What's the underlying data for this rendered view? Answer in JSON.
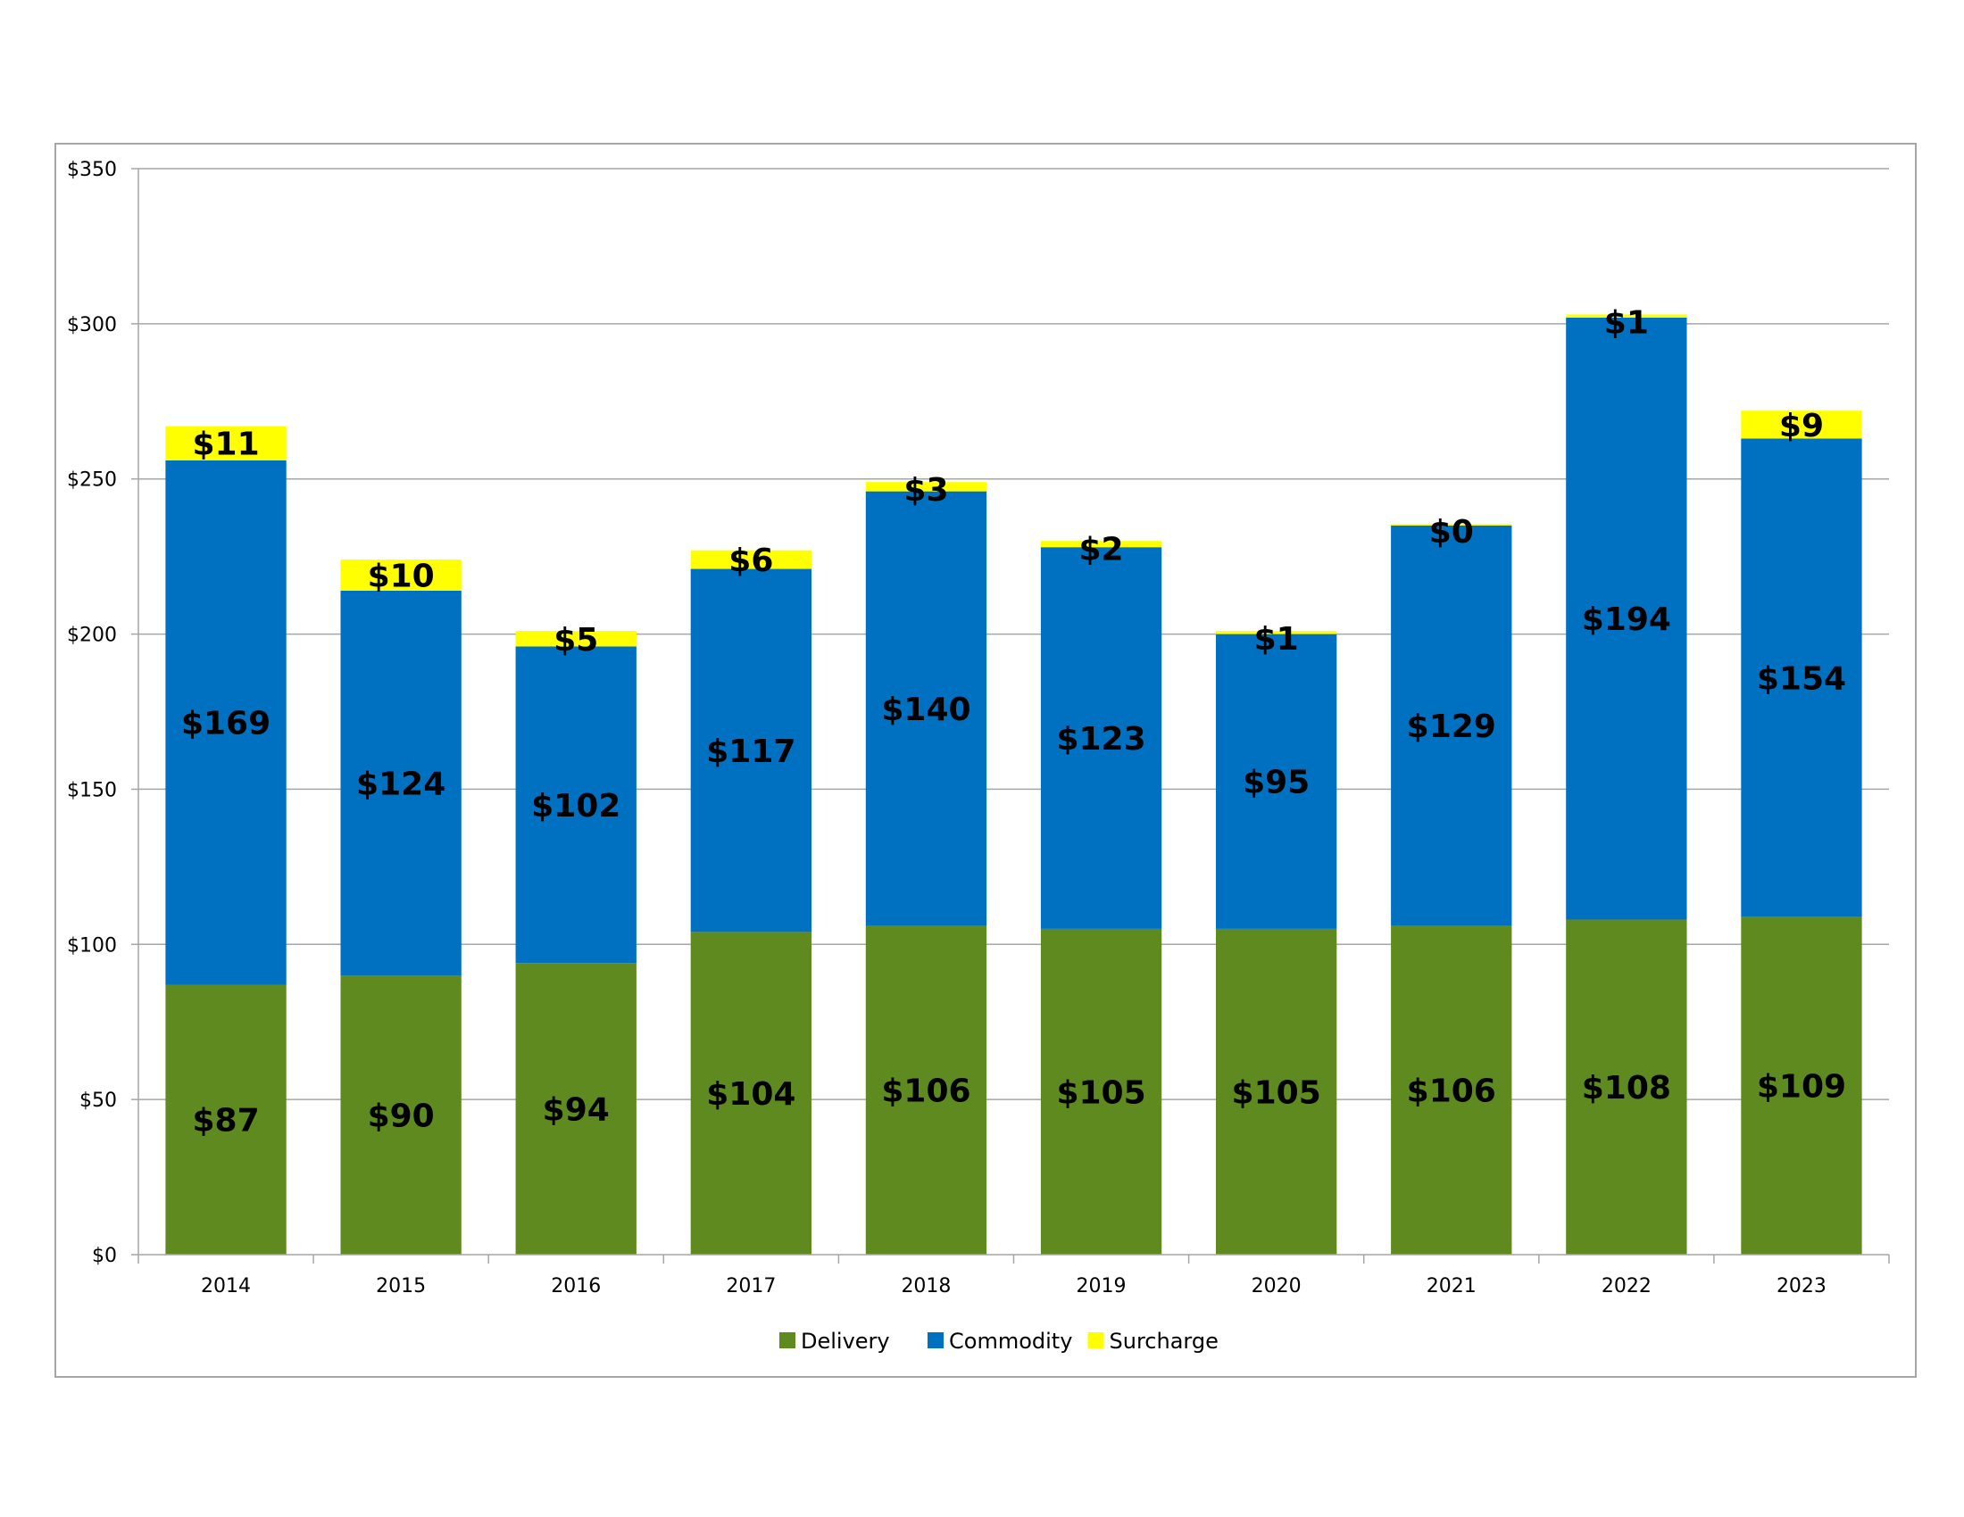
{
  "chart_data": {
    "type": "bar",
    "stacked": true,
    "title": "",
    "xlabel": "",
    "ylabel": "",
    "ylim": [
      0,
      350
    ],
    "y_ticks": [
      0,
      50,
      100,
      150,
      200,
      250,
      300,
      350
    ],
    "y_tick_labels": [
      "$0",
      "$50",
      "$100",
      "$150",
      "$200",
      "$250",
      "$300",
      "$350"
    ],
    "grid": true,
    "legend_position": "bottom",
    "categories": [
      "2014",
      "2015",
      "2016",
      "2017",
      "2018",
      "2019",
      "2020",
      "2021",
      "2022",
      "2023"
    ],
    "series": [
      {
        "name": "Delivery",
        "color": "#5E8A1F",
        "values": [
          87,
          90,
          94,
          104,
          106,
          105,
          105,
          106,
          108,
          109
        ],
        "labels": [
          "$87",
          "$90",
          "$94",
          "$104",
          "$106",
          "$105",
          "$105",
          "$106",
          "$108",
          "$109"
        ]
      },
      {
        "name": "Commodity",
        "color": "#0070C0",
        "values": [
          169,
          124,
          102,
          117,
          140,
          123,
          95,
          129,
          194,
          154
        ],
        "labels": [
          "$169",
          "$124",
          "$102",
          "$117",
          "$140",
          "$123",
          "$95",
          "$129",
          "$194",
          "$154"
        ]
      },
      {
        "name": "Surcharge",
        "color": "#FFFF00",
        "values": [
          11,
          10,
          5,
          6,
          3,
          2,
          1,
          0.5,
          1,
          9
        ],
        "labels": [
          "$11",
          "$10",
          "$5",
          "$6",
          "$3",
          "$2",
          "$1",
          "$0",
          "$1",
          "$9"
        ]
      }
    ]
  }
}
